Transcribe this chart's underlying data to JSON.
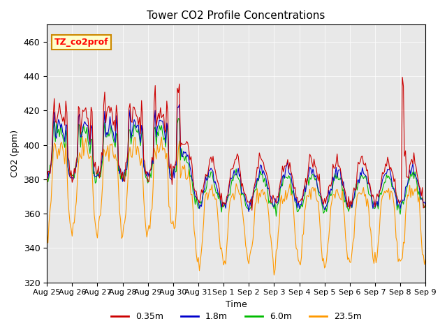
{
  "title": "Tower CO2 Profile Concentrations",
  "xlabel": "Time",
  "ylabel": "CO2 (ppm)",
  "ylim": [
    320,
    470
  ],
  "background_color": "#e8e8e8",
  "legend_label": "TZ_co2prof",
  "colors": {
    "0.35m": "#cc0000",
    "1.8m": "#0000cc",
    "6.0m": "#00bb00",
    "23.5m": "#ff9900"
  },
  "xtick_positions": [
    0,
    24,
    48,
    72,
    96,
    120,
    144,
    168,
    192,
    216,
    240,
    264,
    288,
    312,
    336,
    360
  ],
  "xtick_labels": [
    "Aug 25",
    "Aug 26",
    "Aug 27",
    "Aug 28",
    "Aug 29",
    "Aug 30",
    "Aug 31",
    "Sep 1",
    "Sep 2",
    "Sep 3",
    "Sep 4",
    "Sep 5",
    "Sep 6",
    "Sep 7",
    "Sep 8",
    "Sep 9"
  ],
  "ytick_positions": [
    320,
    340,
    360,
    380,
    400,
    420,
    440,
    460
  ],
  "xlim": [
    0,
    360
  ]
}
